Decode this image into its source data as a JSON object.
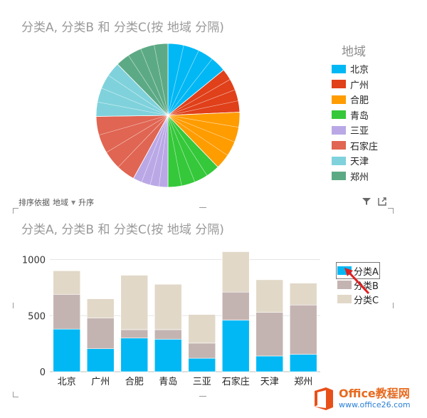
{
  "pie_title": "分类A, 分类B 和 分类C(按 地域 分隔)",
  "bar_title": "分类A, 分类B 和 分类C(按 地域 分隔)",
  "pie_legend_title": "地域",
  "sort_bar": {
    "label": "排序依据",
    "field": "地域",
    "order": "升序"
  },
  "toolbar": {
    "filter_icon": "filter-icon",
    "focus_icon": "focus-mode-icon"
  },
  "colors": {
    "北京": "#01b8f5",
    "广州": "#e0401a",
    "合肥": "#ff9c00",
    "青岛": "#35c83a",
    "三亚": "#baa8e6",
    "石家庄": "#e06552",
    "天津": "#7fd2dc",
    "郑州": "#5caa85",
    "分类A": "#01b8f5",
    "分类B": "#c4b4b1",
    "分类C": "#e1d8c8"
  },
  "chart_data": [
    {
      "type": "pie",
      "title": "分类A, 分类B 和 分类C(按 地域 分隔)",
      "legend_title": "地域",
      "legend_position": "right",
      "categories": [
        "北京",
        "广州",
        "合肥",
        "青岛",
        "三亚",
        "石家庄",
        "天津",
        "郑州"
      ],
      "values": [
        900,
        650,
        860,
        780,
        510,
        1070,
        820,
        790
      ]
    },
    {
      "type": "bar",
      "stacked": true,
      "title": "分类A, 分类B 和 分类C(按 地域 分隔)",
      "legend_position": "right",
      "categories": [
        "北京",
        "广州",
        "合肥",
        "青岛",
        "三亚",
        "石家庄",
        "天津",
        "郑州"
      ],
      "series": [
        {
          "name": "分类A",
          "values": [
            380,
            205,
            300,
            290,
            120,
            460,
            140,
            155
          ]
        },
        {
          "name": "分类B",
          "values": [
            310,
            275,
            75,
            85,
            135,
            250,
            390,
            440
          ]
        },
        {
          "name": "分类C",
          "values": [
            210,
            170,
            485,
            405,
            255,
            360,
            290,
            195
          ]
        }
      ],
      "ylim": [
        0,
        1100
      ],
      "yticks": [
        0,
        500,
        1000
      ],
      "grid": true,
      "selected_legend": "分类A"
    }
  ],
  "watermark": {
    "main": "Office教程网",
    "sub": "www.office26.com",
    "logo_icon": "office-logo-icon"
  }
}
